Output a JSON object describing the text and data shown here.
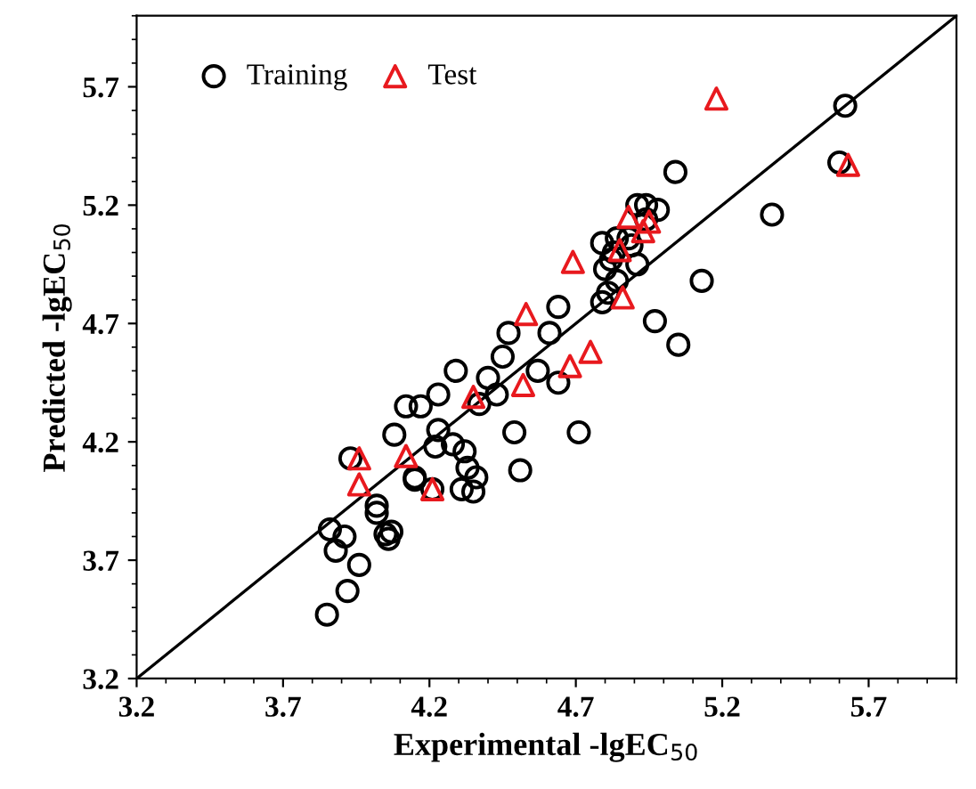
{
  "chart_data": {
    "type": "scatter",
    "xlabel": "Experimental -lgEC$_{50}$",
    "ylabel": "Predicted -lgEC$_{50}$",
    "xlim": [
      3.2,
      6.0
    ],
    "ylim": [
      3.2,
      6.0
    ],
    "xticks": [
      3.2,
      3.7,
      4.2,
      4.7,
      5.2,
      5.7
    ],
    "yticks": [
      3.2,
      3.7,
      4.2,
      4.7,
      5.2,
      5.7
    ],
    "grid": false,
    "legend": "top left",
    "series": [
      {
        "name": "Training",
        "color": "#000000",
        "marker": "circle",
        "x": [
          3.93,
          4.08,
          4.12,
          4.17,
          4.23,
          4.23,
          4.22,
          4.29,
          4.28,
          4.32,
          4.33,
          4.36,
          4.31,
          4.35,
          4.15,
          4.15,
          4.21,
          4.02,
          4.02,
          4.05,
          4.06,
          4.07,
          3.86,
          3.91,
          3.88,
          3.96,
          3.92,
          3.85,
          4.37,
          4.4,
          4.43,
          4.45,
          4.47,
          4.49,
          4.51,
          4.57,
          4.61,
          4.64,
          4.64,
          4.71,
          4.79,
          4.81,
          4.84,
          4.8,
          4.82,
          4.83,
          4.79,
          4.84,
          4.88,
          4.89,
          4.91,
          4.91,
          4.94,
          4.98,
          4.94,
          5.04,
          4.97,
          5.05,
          5.13,
          5.37,
          5.6,
          5.62
        ],
        "values": [
          4.13,
          4.23,
          4.35,
          4.35,
          4.4,
          4.25,
          4.18,
          4.5,
          4.19,
          4.16,
          4.09,
          4.05,
          4.0,
          3.99,
          4.05,
          4.04,
          4.0,
          3.93,
          3.9,
          3.81,
          3.79,
          3.82,
          3.83,
          3.8,
          3.74,
          3.68,
          3.57,
          3.47,
          4.36,
          4.47,
          4.4,
          4.56,
          4.66,
          4.24,
          4.08,
          4.5,
          4.66,
          4.77,
          4.45,
          4.24,
          4.79,
          4.83,
          4.88,
          4.93,
          4.97,
          5.0,
          5.04,
          5.06,
          5.06,
          5.03,
          4.95,
          5.2,
          5.2,
          5.18,
          5.14,
          5.34,
          4.71,
          4.61,
          4.88,
          5.16,
          5.38,
          5.62
        ]
      },
      {
        "name": "Test",
        "color": "#e8191e",
        "marker": "triangle",
        "x": [
          3.96,
          3.96,
          4.12,
          4.21,
          4.35,
          4.52,
          4.53,
          4.68,
          4.75,
          4.69,
          4.86,
          4.85,
          4.88,
          4.93,
          4.95,
          5.18,
          5.63
        ],
        "values": [
          4.13,
          4.02,
          4.14,
          4.0,
          4.39,
          4.44,
          4.74,
          4.52,
          4.58,
          4.96,
          4.81,
          5.01,
          5.15,
          5.09,
          5.13,
          5.65,
          5.37
        ]
      },
      {
        "type": "line",
        "color": "#000000",
        "marker": "none",
        "line_style": "solid",
        "x": [
          3.2,
          6.0
        ],
        "values": [
          3.2,
          6.0
        ]
      }
    ]
  }
}
